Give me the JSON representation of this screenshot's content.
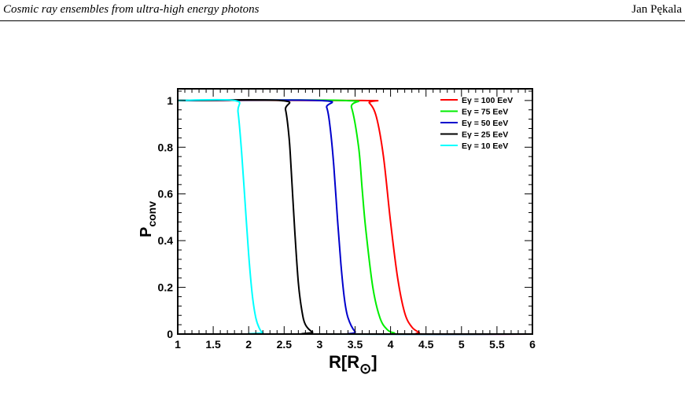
{
  "header": {
    "title": "Cosmic ray ensembles from ultra-high energy photons",
    "author": "Jan Pękala"
  },
  "chart_data": {
    "type": "line",
    "xlabel": "R[R",
    "xlabel_sub": "⊙",
    "xlabel_close": "]",
    "ylabel": "P",
    "ylabel_sub": "conv",
    "xlim": [
      1,
      6
    ],
    "ylim": [
      0,
      1.05
    ],
    "xticks": [
      1,
      1.5,
      2,
      2.5,
      3,
      3.5,
      4,
      4.5,
      5,
      5.5,
      6
    ],
    "xtick_labels": [
      "1",
      "1.5",
      "2",
      "2.5",
      "3",
      "3.5",
      "4",
      "4.5",
      "5",
      "5.5",
      "6"
    ],
    "yticks": [
      0,
      0.2,
      0.4,
      0.6,
      0.8,
      1
    ],
    "ytick_labels": [
      "0",
      "0.2",
      "0.4",
      "0.6",
      "0.8",
      "1"
    ],
    "grid": false,
    "legend_position": "top-right",
    "series": [
      {
        "name": "Eγ = 100 EeV",
        "color": "#ff0000",
        "x": [
          1,
          3.6,
          3.7,
          3.8,
          3.9,
          4.0,
          4.1,
          4.2,
          4.3,
          4.4,
          4.5,
          6
        ],
        "y": [
          1,
          1,
          0.99,
          0.93,
          0.76,
          0.48,
          0.24,
          0.09,
          0.03,
          0.008,
          0,
          0
        ]
      },
      {
        "name": "Eγ =  75 EeV",
        "color": "#00ee00",
        "x": [
          1,
          3.35,
          3.45,
          3.55,
          3.6,
          3.65,
          3.75,
          3.85,
          3.95,
          4.05,
          4.2,
          6
        ],
        "y": [
          1,
          1,
          0.97,
          0.8,
          0.62,
          0.45,
          0.2,
          0.07,
          0.02,
          0.005,
          0,
          0
        ]
      },
      {
        "name": "Eγ =  50 EeV",
        "color": "#0000cc",
        "x": [
          1,
          3.0,
          3.1,
          3.15,
          3.2,
          3.25,
          3.3,
          3.35,
          3.4,
          3.5,
          3.6,
          6
        ],
        "y": [
          1,
          1,
          0.97,
          0.88,
          0.72,
          0.5,
          0.3,
          0.15,
          0.07,
          0.01,
          0,
          0
        ]
      },
      {
        "name": "Eγ =  25 EeV",
        "color": "#000000",
        "x": [
          1,
          2.45,
          2.52,
          2.57,
          2.6,
          2.65,
          2.7,
          2.75,
          2.8,
          2.9,
          3.0,
          6
        ],
        "y": [
          1,
          1,
          0.96,
          0.84,
          0.7,
          0.44,
          0.22,
          0.1,
          0.04,
          0.008,
          0,
          0
        ]
      },
      {
        "name": "Eγ =  10 EeV",
        "color": "#00ffff",
        "x": [
          1,
          1.8,
          1.85,
          1.9,
          1.95,
          2.0,
          2.05,
          2.1,
          2.15,
          2.2,
          2.3,
          6
        ],
        "y": [
          1,
          1,
          0.95,
          0.78,
          0.56,
          0.34,
          0.17,
          0.07,
          0.025,
          0.006,
          0,
          0
        ]
      }
    ]
  }
}
